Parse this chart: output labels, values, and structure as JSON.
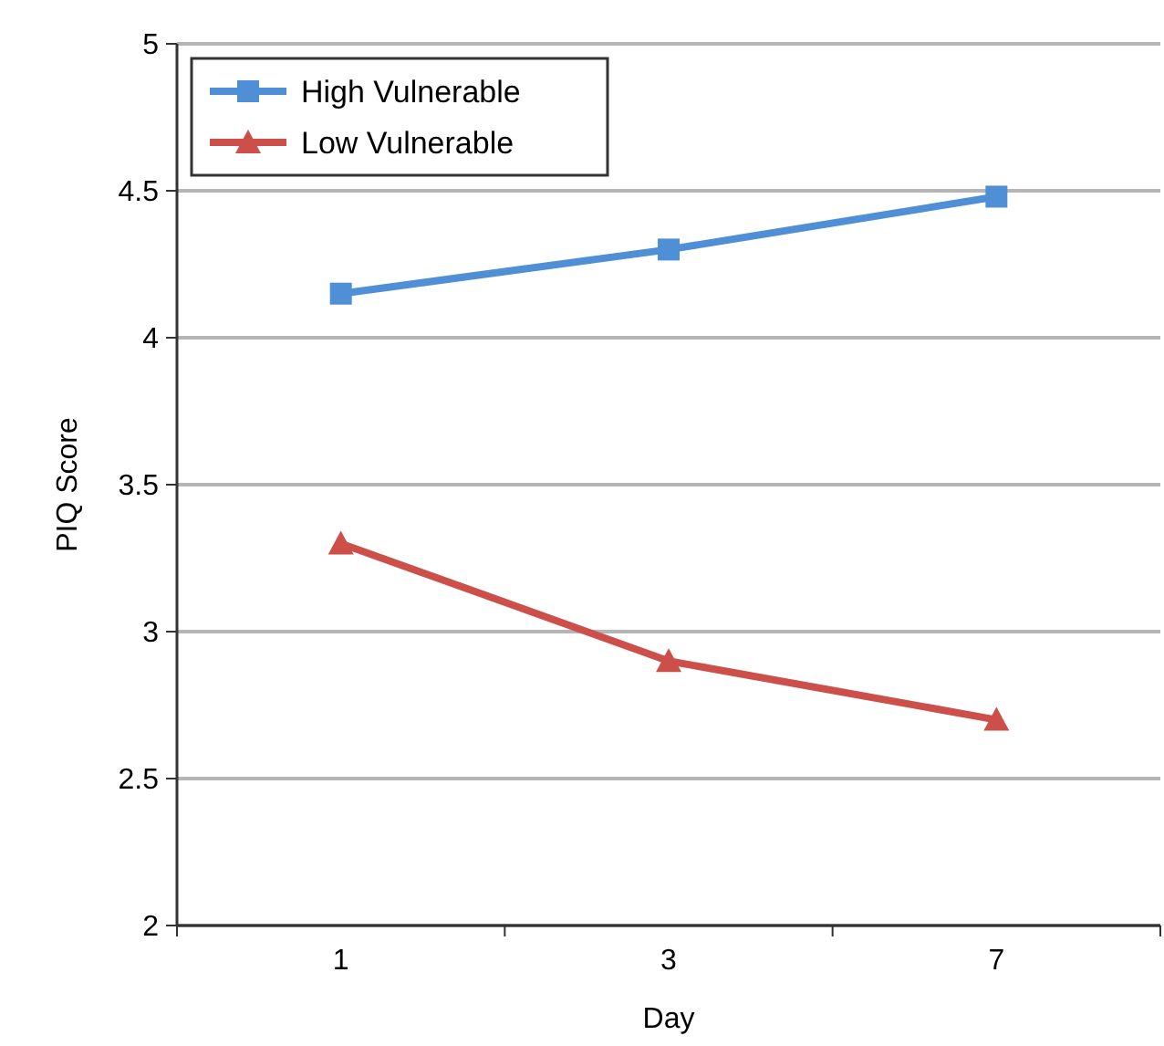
{
  "chart_data": {
    "type": "line",
    "xlabel": "Day",
    "ylabel": "PIQ Score",
    "categories": [
      "1",
      "3",
      "7"
    ],
    "series": [
      {
        "name": "High Vulnerable",
        "color": "#4f8fd6",
        "marker": "square",
        "values": [
          4.15,
          4.3,
          4.48
        ]
      },
      {
        "name": "Low Vulnerable",
        "color": "#cc4f4a",
        "marker": "triangle",
        "values": [
          3.3,
          2.9,
          2.7
        ]
      }
    ],
    "ylim": [
      2,
      5
    ],
    "yticks": [
      2,
      2.5,
      3,
      3.5,
      4,
      4.5,
      5
    ],
    "grid": "y",
    "legend": "top left",
    "line_style": "solid"
  }
}
